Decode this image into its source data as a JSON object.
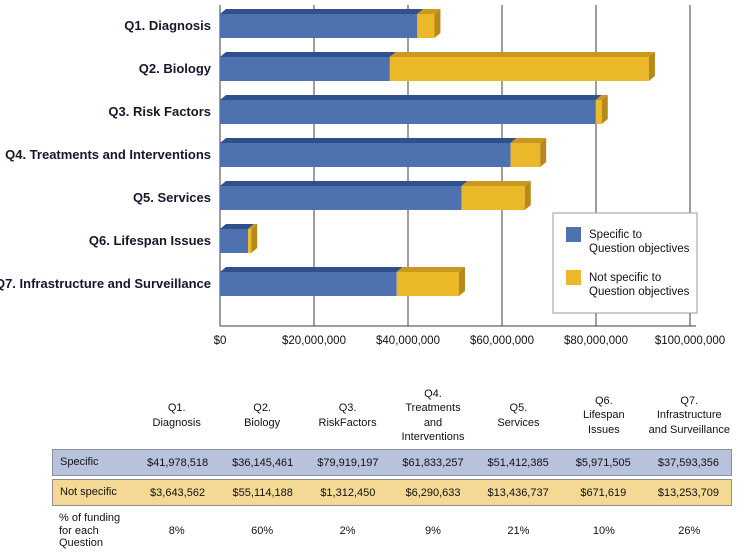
{
  "chart_data": {
    "type": "bar",
    "orientation": "horizontal",
    "stacked": true,
    "grid": true,
    "legend_position": "inside-right",
    "categories": [
      "Q1. Diagnosis",
      "Q2. Biology",
      "Q3. Risk Factors",
      "Q4. Treatments and Interventions",
      "Q5. Services",
      "Q6. Lifespan Issues",
      "Q7. Infrastructure and Surveillance"
    ],
    "series": [
      {
        "name": "Specific to Question objectives",
        "color": "#4e72b0",
        "top_color": "#30508c",
        "values": [
          41978518,
          36145461,
          79919197,
          61833257,
          51412385,
          5971505,
          37593356
        ]
      },
      {
        "name": "Not specific to Question objectives",
        "color": "#eab829",
        "top_color": "#c9981f",
        "side_color": "#b8891a",
        "values": [
          3643562,
          55114188,
          1312450,
          6290633,
          13436737,
          671619,
          13253709
        ]
      }
    ],
    "x_axis": {
      "min": 0,
      "max": 100000000,
      "tick_interval": 20000000,
      "tick_labels": [
        "$0",
        "$20,000,000",
        "$40,000,000",
        "$60,000,000",
        "$80,000,000",
        "$100,000,000"
      ]
    },
    "legend": [
      {
        "lines": [
          "Specific to",
          "Question objectives"
        ],
        "color": "#4e72b0"
      },
      {
        "lines": [
          "Not specific to",
          "Question objectives"
        ],
        "color": "#eab829"
      }
    ]
  },
  "table": {
    "columns": [
      [
        "Q1.",
        "Diagnosis"
      ],
      [
        "Q2.",
        "Biology"
      ],
      [
        "Q3.",
        "RiskFactors"
      ],
      [
        "Q4.",
        "Treatments",
        "and Interventions"
      ],
      [
        "Q5.",
        "Services"
      ],
      [
        "Q6.",
        "Lifespan",
        "Issues"
      ],
      [
        "Q7.",
        "Infrastructure",
        "and Surveillance"
      ]
    ],
    "rows": [
      {
        "label_lines": [
          "Specific"
        ],
        "bg": "#b7c3dc",
        "bordered": true,
        "values": [
          "$41,978,518",
          "$36,145,461",
          "$79,919,197",
          "$61,833,257",
          "$51,412,385",
          "$5,971,505",
          "$37,593,356"
        ]
      },
      {
        "label_lines": [
          "Not specific"
        ],
        "bg": "#f3d993",
        "bordered": true,
        "values": [
          "$3,643,562",
          "$55,114,188",
          "$1,312,450",
          "$6,290,633",
          "$13,436,737",
          "$671,619",
          "$13,253,709"
        ]
      },
      {
        "label_lines": [
          "% of funding",
          "for each Question"
        ],
        "bg": "#ffffff",
        "bordered": false,
        "values": [
          "8%",
          "60%",
          "2%",
          "9%",
          "21%",
          "10%",
          "26%"
        ]
      }
    ]
  }
}
